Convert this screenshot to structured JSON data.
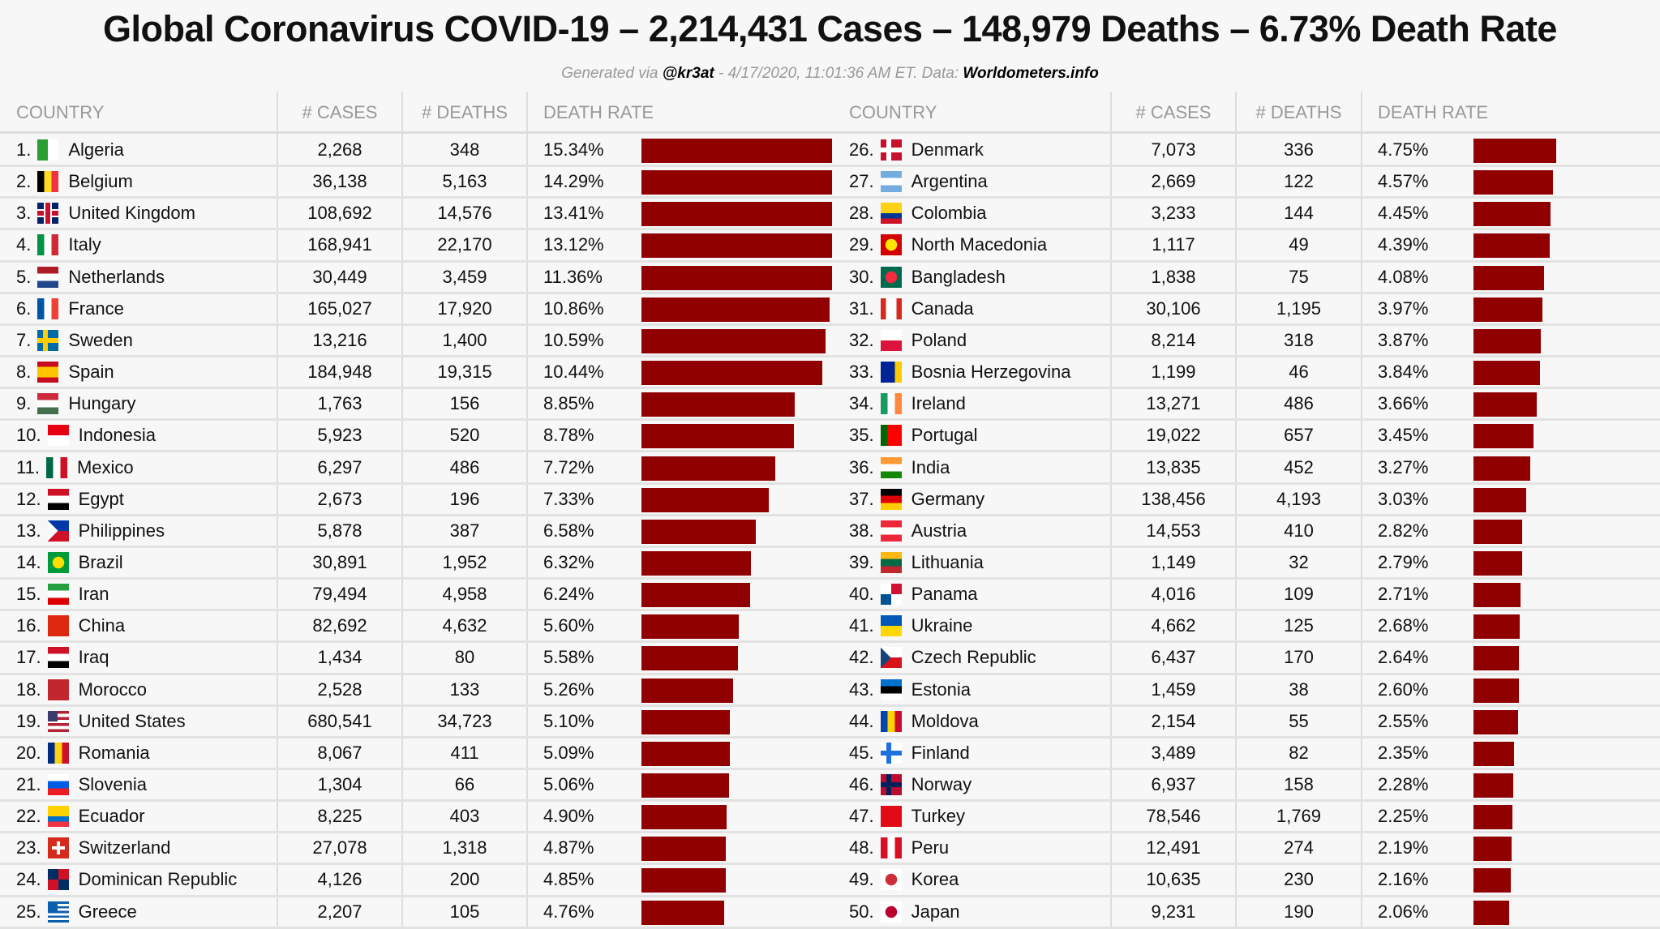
{
  "title": "Global Coronavirus COVID-19 – 2,214,431 Cases – 148,979 Deaths – 6.73% Death Rate",
  "subtitle": {
    "prefix": "Generated via ",
    "handle": "@kr3at",
    "middle": " - 4/17/2020, 11:01:36 AM ET. Data: ",
    "source": "Worldometers.info"
  },
  "headers": {
    "country": "COUNTRY",
    "cases": "# CASES",
    "deaths": "# DEATHS",
    "rate": "DEATH RATE"
  },
  "colors": {
    "bar": "#900000",
    "background": "#f7f7f7",
    "header_text": "#999999"
  },
  "chart_data": {
    "type": "table",
    "title": "Global Coronavirus COVID-19 – 2,214,431 Cases – 148,979 Deaths – 6.73% Death Rate",
    "columns": [
      "COUNTRY",
      "# CASES",
      "# DEATHS",
      "DEATH RATE"
    ],
    "bar_unit_percent_max_display": 11,
    "rows": [
      {
        "rank": "1.",
        "country": "Algeria",
        "cases": "2,268",
        "deaths": "348",
        "rate": "15.34%",
        "value": 15.34,
        "flag": "v|#2a9d34,#ffffff"
      },
      {
        "rank": "2.",
        "country": "Belgium",
        "cases": "36,138",
        "deaths": "5,163",
        "rate": "14.29%",
        "value": 14.29,
        "flag": "v|#000000,#fdda24,#ef3340"
      },
      {
        "rank": "3.",
        "country": "United Kingdom",
        "cases": "108,692",
        "deaths": "14,576",
        "rate": "13.41%",
        "value": 13.41,
        "flag": "crossc|#012169,#c8102e"
      },
      {
        "rank": "4.",
        "country": "Italy",
        "cases": "168,941",
        "deaths": "22,170",
        "rate": "13.12%",
        "value": 13.12,
        "flag": "v|#009246,#ffffff,#ce2b37"
      },
      {
        "rank": "5.",
        "country": "Netherlands",
        "cases": "30,449",
        "deaths": "3,459",
        "rate": "11.36%",
        "value": 11.36,
        "flag": "h|#ae1c28,#ffffff,#21468b"
      },
      {
        "rank": "6.",
        "country": "France",
        "cases": "165,027",
        "deaths": "17,920",
        "rate": "10.86%",
        "value": 10.86,
        "flag": "v|#0055a4,#ffffff,#ef4135"
      },
      {
        "rank": "7.",
        "country": "Sweden",
        "cases": "13,216",
        "deaths": "1,400",
        "rate": "10.59%",
        "value": 10.59,
        "flag": "crossn|#006aa7,#fecc00"
      },
      {
        "rank": "8.",
        "country": "Spain",
        "cases": "184,948",
        "deaths": "19,315",
        "rate": "10.44%",
        "value": 10.44,
        "flag": "h|#c60b1e,#ffc400,#ffc400,#c60b1e"
      },
      {
        "rank": "9.",
        "country": "Hungary",
        "cases": "1,763",
        "deaths": "156",
        "rate": "8.85%",
        "value": 8.85,
        "flag": "h|#cd2a3e,#ffffff,#436f4d"
      },
      {
        "rank": "10.",
        "country": "Indonesia",
        "cases": "5,923",
        "deaths": "520",
        "rate": "8.78%",
        "value": 8.78,
        "flag": "h|#e70011,#ffffff"
      },
      {
        "rank": "11.",
        "country": "Mexico",
        "cases": "6,297",
        "deaths": "486",
        "rate": "7.72%",
        "value": 7.72,
        "flag": "v|#006847,#ffffff,#ce1126"
      },
      {
        "rank": "12.",
        "country": "Egypt",
        "cases": "2,673",
        "deaths": "196",
        "rate": "7.33%",
        "value": 7.33,
        "flag": "h|#ce1126,#ffffff,#000000"
      },
      {
        "rank": "13.",
        "country": "Philippines",
        "cases": "5,878",
        "deaths": "387",
        "rate": "6.58%",
        "value": 6.58,
        "flag": "tri|#0038a8,#ce1126,#ffffff"
      },
      {
        "rank": "14.",
        "country": "Brazil",
        "cases": "30,891",
        "deaths": "1,952",
        "rate": "6.32%",
        "value": 6.32,
        "flag": "dot|#009c3b,#ffdf00"
      },
      {
        "rank": "15.",
        "country": "Iran",
        "cases": "79,494",
        "deaths": "4,958",
        "rate": "6.24%",
        "value": 6.24,
        "flag": "h|#239f40,#ffffff,#da0000"
      },
      {
        "rank": "16.",
        "country": "China",
        "cases": "82,692",
        "deaths": "4,632",
        "rate": "5.60%",
        "value": 5.6,
        "flag": "h|#de2910"
      },
      {
        "rank": "17.",
        "country": "Iraq",
        "cases": "1,434",
        "deaths": "80",
        "rate": "5.58%",
        "value": 5.58,
        "flag": "h|#ce1126,#ffffff,#000000"
      },
      {
        "rank": "18.",
        "country": "Morocco",
        "cases": "2,528",
        "deaths": "133",
        "rate": "5.26%",
        "value": 5.26,
        "flag": "h|#c1272d"
      },
      {
        "rank": "19.",
        "country": "United States",
        "cases": "680,541",
        "deaths": "34,723",
        "rate": "5.10%",
        "value": 5.1,
        "flag": "canton|#b22234,#ffffff,#b22234,#ffffff,#b22234,#ffffff,#b22234;#3c3b6e"
      },
      {
        "rank": "20.",
        "country": "Romania",
        "cases": "8,067",
        "deaths": "411",
        "rate": "5.09%",
        "value": 5.09,
        "flag": "v|#002b7f,#fcd116,#ce1126"
      },
      {
        "rank": "21.",
        "country": "Slovenia",
        "cases": "1,304",
        "deaths": "66",
        "rate": "5.06%",
        "value": 5.06,
        "flag": "h|#ffffff,#005ce5,#ed1c24"
      },
      {
        "rank": "22.",
        "country": "Ecuador",
        "cases": "8,225",
        "deaths": "403",
        "rate": "4.90%",
        "value": 4.9,
        "flag": "h|#ffd100,#ffd100,#0072ce,#ef3340"
      },
      {
        "rank": "23.",
        "country": "Switzerland",
        "cases": "27,078",
        "deaths": "1,318",
        "rate": "4.87%",
        "value": 4.87,
        "flag": "crossc|#d52b1e,#ffffff"
      },
      {
        "rank": "24.",
        "country": "Dominican Republic",
        "cases": "4,126",
        "deaths": "200",
        "rate": "4.85%",
        "value": 4.85,
        "flag": "quad|#002d62,#ce1126,#ce1126,#002d62"
      },
      {
        "rank": "25.",
        "country": "Greece",
        "cases": "2,207",
        "deaths": "105",
        "rate": "4.76%",
        "value": 4.76,
        "flag": "canton|#0d5eaf,#ffffff,#0d5eaf,#ffffff,#0d5eaf,#ffffff,#0d5eaf,#ffffff,#0d5eaf;#0d5eaf"
      },
      {
        "rank": "26.",
        "country": "Denmark",
        "cases": "7,073",
        "deaths": "336",
        "rate": "4.75%",
        "value": 4.75,
        "flag": "crossn|#c8102e,#ffffff"
      },
      {
        "rank": "27.",
        "country": "Argentina",
        "cases": "2,669",
        "deaths": "122",
        "rate": "4.57%",
        "value": 4.57,
        "flag": "h|#74acdf,#ffffff,#74acdf"
      },
      {
        "rank": "28.",
        "country": "Colombia",
        "cases": "3,233",
        "deaths": "144",
        "rate": "4.45%",
        "value": 4.45,
        "flag": "h|#fcd116,#fcd116,#003893,#ce1126"
      },
      {
        "rank": "29.",
        "country": "North Macedonia",
        "cases": "1,117",
        "deaths": "49",
        "rate": "4.39%",
        "value": 4.39,
        "flag": "dot|#d20000,#ffe600"
      },
      {
        "rank": "30.",
        "country": "Bangladesh",
        "cases": "1,838",
        "deaths": "75",
        "rate": "4.08%",
        "value": 4.08,
        "flag": "dot|#006a4e,#f42a41"
      },
      {
        "rank": "31.",
        "country": "Canada",
        "cases": "30,106",
        "deaths": "1,195",
        "rate": "3.97%",
        "value": 3.97,
        "flag": "v|#d52b1e,#ffffff,#ffffff,#d52b1e"
      },
      {
        "rank": "32.",
        "country": "Poland",
        "cases": "8,214",
        "deaths": "318",
        "rate": "3.87%",
        "value": 3.87,
        "flag": "h|#ffffff,#dc143c"
      },
      {
        "rank": "33.",
        "country": "Bosnia Herzegovina",
        "cases": "1,199",
        "deaths": "46",
        "rate": "3.84%",
        "value": 3.84,
        "flag": "v|#002395,#002395,#fecb00"
      },
      {
        "rank": "34.",
        "country": "Ireland",
        "cases": "13,271",
        "deaths": "486",
        "rate": "3.66%",
        "value": 3.66,
        "flag": "v|#169b62,#ffffff,#ff883e"
      },
      {
        "rank": "35.",
        "country": "Portugal",
        "cases": "19,022",
        "deaths": "657",
        "rate": "3.45%",
        "value": 3.45,
        "flag": "v|#006600,#ff0000,#ff0000"
      },
      {
        "rank": "36.",
        "country": "India",
        "cases": "13,835",
        "deaths": "452",
        "rate": "3.27%",
        "value": 3.27,
        "flag": "h|#ff9933,#ffffff,#138808"
      },
      {
        "rank": "37.",
        "country": "Germany",
        "cases": "138,456",
        "deaths": "4,193",
        "rate": "3.03%",
        "value": 3.03,
        "flag": "h|#000000,#dd0000,#ffce00"
      },
      {
        "rank": "38.",
        "country": "Austria",
        "cases": "14,553",
        "deaths": "410",
        "rate": "2.82%",
        "value": 2.82,
        "flag": "h|#ed2939,#ffffff,#ed2939"
      },
      {
        "rank": "39.",
        "country": "Lithuania",
        "cases": "1,149",
        "deaths": "32",
        "rate": "2.79%",
        "value": 2.79,
        "flag": "h|#fdb913,#006a44,#c1272d"
      },
      {
        "rank": "40.",
        "country": "Panama",
        "cases": "4,016",
        "deaths": "109",
        "rate": "2.71%",
        "value": 2.71,
        "flag": "quad|#ffffff,#d21034,#005293,#ffffff"
      },
      {
        "rank": "41.",
        "country": "Ukraine",
        "cases": "4,662",
        "deaths": "125",
        "rate": "2.68%",
        "value": 2.68,
        "flag": "h|#0057b7,#ffd700"
      },
      {
        "rank": "42.",
        "country": "Czech Republic",
        "cases": "6,437",
        "deaths": "170",
        "rate": "2.64%",
        "value": 2.64,
        "flag": "tri|#ffffff,#d7141a,#11457e"
      },
      {
        "rank": "43.",
        "country": "Estonia",
        "cases": "1,459",
        "deaths": "38",
        "rate": "2.60%",
        "value": 2.6,
        "flag": "h|#0072ce,#000000,#ffffff"
      },
      {
        "rank": "44.",
        "country": "Moldova",
        "cases": "2,154",
        "deaths": "55",
        "rate": "2.55%",
        "value": 2.55,
        "flag": "v|#0046ae,#ffd200,#cc092f"
      },
      {
        "rank": "45.",
        "country": "Finland",
        "cases": "3,489",
        "deaths": "82",
        "rate": "2.35%",
        "value": 2.35,
        "flag": "crossn|#ffffff,#1e6fe0"
      },
      {
        "rank": "46.",
        "country": "Norway",
        "cases": "6,937",
        "deaths": "158",
        "rate": "2.28%",
        "value": 2.28,
        "flag": "crossn|#ba0c2f,#00205b"
      },
      {
        "rank": "47.",
        "country": "Turkey",
        "cases": "78,546",
        "deaths": "1,769",
        "rate": "2.25%",
        "value": 2.25,
        "flag": "h|#e30a17"
      },
      {
        "rank": "48.",
        "country": "Peru",
        "cases": "12,491",
        "deaths": "274",
        "rate": "2.19%",
        "value": 2.19,
        "flag": "v|#d91023,#ffffff,#d91023"
      },
      {
        "rank": "49.",
        "country": "Korea",
        "cases": "10,635",
        "deaths": "230",
        "rate": "2.16%",
        "value": 2.16,
        "flag": "dot|#ffffff,#cd2e3a"
      },
      {
        "rank": "50.",
        "country": "Japan",
        "cases": "9,231",
        "deaths": "190",
        "rate": "2.06%",
        "value": 2.06,
        "flag": "dot|#ffffff,#bc002d"
      }
    ]
  }
}
